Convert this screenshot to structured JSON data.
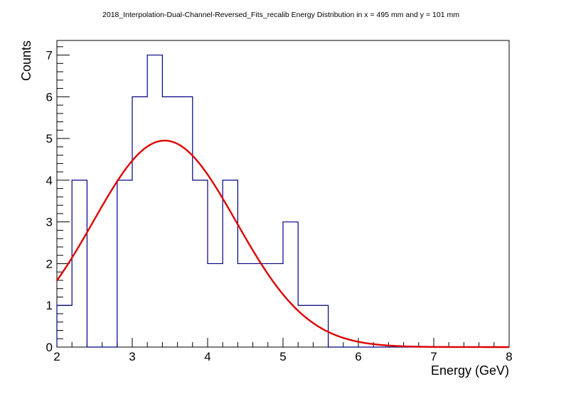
{
  "chart_data": {
    "type": "bar",
    "title": "2018_Interpolation-Dual-Channel-Reversed_Fits_recalib Energy Distribution in x = 495 mm and y = 101 mm",
    "xlabel": "Energy (GeV)",
    "ylabel": "Counts",
    "xlim": [
      2,
      8
    ],
    "ylim": [
      0,
      7.35
    ],
    "x_ticks": [
      2,
      3,
      4,
      5,
      6,
      7,
      8
    ],
    "y_ticks": [
      0,
      1,
      2,
      3,
      4,
      5,
      6,
      7
    ],
    "bin_width": 0.2,
    "bin_edges": [
      2.0,
      2.2,
      2.4,
      2.6,
      2.8,
      3.0,
      3.2,
      3.4,
      3.6,
      3.8,
      4.0,
      4.2,
      4.4,
      4.6,
      4.8,
      5.0,
      5.2,
      5.4,
      5.6,
      5.8,
      6.0,
      6.2,
      6.4,
      6.6,
      6.8,
      7.0,
      7.2,
      7.4,
      7.6,
      7.8,
      8.0
    ],
    "values": [
      1,
      4,
      0,
      0,
      4,
      6,
      7,
      6,
      6,
      4,
      2,
      4,
      2,
      2,
      2,
      3,
      1,
      1,
      0,
      0,
      0,
      0,
      0,
      0,
      0,
      0,
      0,
      0,
      0,
      0
    ],
    "histogram_color": "#000080",
    "fit": {
      "type": "gaussian",
      "amplitude": 4.95,
      "mean": 3.43,
      "sigma": 0.95,
      "color": "#dd0000"
    },
    "grid": false,
    "legend": "none"
  }
}
